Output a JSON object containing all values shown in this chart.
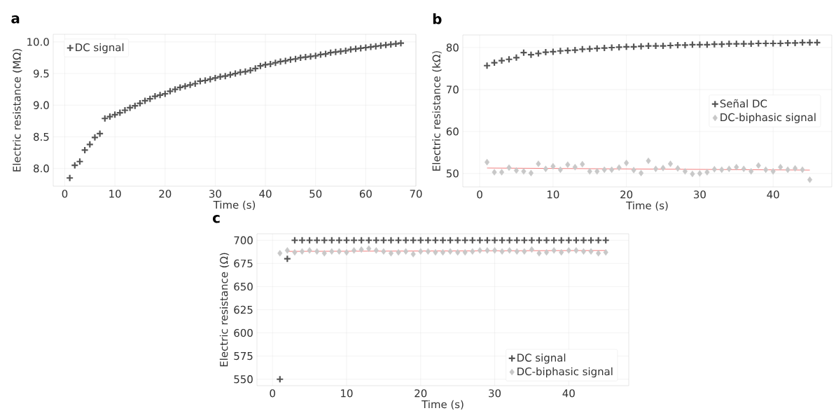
{
  "chart_data": [
    {
      "type": "scatter",
      "title": "a",
      "xlabel": "Time (s)",
      "ylabel": "Electric resistance (MΩ)",
      "xlim": [
        -2.3,
        70
      ],
      "ylim": [
        7.72,
        10.12
      ],
      "xticks": [
        0,
        10,
        20,
        30,
        40,
        50,
        60,
        70
      ],
      "yticks": [
        {
          "value": 8,
          "label": "8.0"
        },
        {
          "value": 8.5,
          "label": "8.5"
        },
        {
          "value": 9,
          "label": "9.0"
        },
        {
          "value": 9.5,
          "label": "9.5"
        },
        {
          "value": 10,
          "label": "10.0"
        }
      ],
      "grid": true,
      "legend": "top left",
      "series": [
        {
          "name": "DC signal",
          "color": "#555555",
          "marker": "cross",
          "x": [
            1,
            2,
            3,
            4,
            5,
            6,
            7,
            8,
            9,
            10,
            11,
            12,
            13,
            14,
            15,
            16,
            17,
            18,
            19,
            20,
            21,
            22,
            23,
            24,
            25,
            26,
            27,
            28,
            29,
            30,
            31,
            32,
            33,
            34,
            35,
            36,
            37,
            38,
            39,
            40,
            41,
            42,
            43,
            44,
            45,
            46,
            47,
            48,
            49,
            50,
            51,
            52,
            53,
            54,
            55,
            56,
            57,
            58,
            59,
            60,
            61,
            62,
            63,
            64,
            65,
            66,
            67
          ],
          "values": [
            7.85,
            8.05,
            8.11,
            8.29,
            8.38,
            8.49,
            8.55,
            8.79,
            8.82,
            8.85,
            8.88,
            8.92,
            8.96,
            8.99,
            9.03,
            9.07,
            9.1,
            9.14,
            9.16,
            9.18,
            9.22,
            9.25,
            9.28,
            9.3,
            9.32,
            9.34,
            9.38,
            9.39,
            9.41,
            9.43,
            9.45,
            9.46,
            9.48,
            9.5,
            9.52,
            9.53,
            9.55,
            9.58,
            9.62,
            9.64,
            9.65,
            9.67,
            9.69,
            9.7,
            9.72,
            9.73,
            9.75,
            9.76,
            9.77,
            9.78,
            9.8,
            9.81,
            9.83,
            9.84,
            9.85,
            9.86,
            9.88,
            9.89,
            9.9,
            9.91,
            9.92,
            9.93,
            9.94,
            9.95,
            9.96,
            9.97,
            9.98
          ]
        }
      ]
    },
    {
      "type": "scatter",
      "title": "b",
      "xlabel": "Time (s)",
      "ylabel": "Electric resistance (kΩ)",
      "xlim": [
        -2.3,
        48
      ],
      "ylim": [
        46.8,
        83
      ],
      "xticks": [
        0,
        10,
        20,
        30,
        40
      ],
      "yticks": [
        50,
        60,
        70,
        80
      ],
      "grid": true,
      "legend": "right",
      "series": [
        {
          "name": "Señal DC",
          "color": "#555555",
          "marker": "cross",
          "x": [
            1,
            2,
            3,
            4,
            5,
            6,
            7,
            8,
            9,
            10,
            11,
            12,
            13,
            14,
            15,
            16,
            17,
            18,
            19,
            20,
            21,
            22,
            23,
            24,
            25,
            26,
            27,
            28,
            29,
            30,
            31,
            32,
            33,
            34,
            35,
            36,
            37,
            38,
            39,
            40,
            41,
            42,
            43,
            44,
            45,
            46
          ],
          "values": [
            75.7,
            76.4,
            76.9,
            77.2,
            77.6,
            78.8,
            78.3,
            78.6,
            78.9,
            79.0,
            79.2,
            79.3,
            79.4,
            79.6,
            79.7,
            79.8,
            79.9,
            80.0,
            80.1,
            80.2,
            80.2,
            80.3,
            80.4,
            80.4,
            80.4,
            80.5,
            80.6,
            80.6,
            80.7,
            80.7,
            80.7,
            80.8,
            80.8,
            80.9,
            80.9,
            80.9,
            80.9,
            81.0,
            81.0,
            81.0,
            81.0,
            81.1,
            81.1,
            81.2,
            81.2,
            81.2
          ]
        },
        {
          "name": "DC-biphasic signal",
          "color": "#c8c8c8",
          "marker": "diamond",
          "x": [
            1,
            2,
            3,
            4,
            5,
            6,
            7,
            8,
            9,
            10,
            11,
            12,
            13,
            14,
            15,
            16,
            17,
            18,
            19,
            20,
            21,
            22,
            23,
            24,
            25,
            26,
            27,
            28,
            29,
            30,
            31,
            32,
            33,
            34,
            35,
            36,
            37,
            38,
            39,
            40,
            41,
            42,
            43,
            44,
            45
          ],
          "values": [
            52.7,
            50.3,
            50.3,
            51.4,
            50.7,
            50.5,
            50.1,
            52.3,
            51.1,
            51.7,
            50.9,
            52.1,
            51.5,
            52.2,
            50.5,
            50.5,
            50.9,
            50.9,
            51.4,
            52.5,
            50.8,
            50.1,
            53.0,
            51.1,
            51.3,
            52.3,
            51.2,
            50.5,
            49.9,
            50.0,
            50.3,
            51.0,
            50.9,
            51.1,
            51.5,
            51.1,
            50.5,
            51.9,
            50.9,
            50.5,
            51.5,
            50.9,
            51.2,
            50.9,
            48.5
          ]
        },
        {
          "type": "line",
          "color": "#f08080",
          "marker": "none",
          "x": [
            1,
            45
          ],
          "values": [
            51.3,
            50.8
          ]
        }
      ]
    },
    {
      "type": "scatter",
      "title": "c",
      "xlabel": "Time (s)",
      "ylabel": "Electric resistance (Ω)",
      "xlim": [
        -2.1,
        48.1
      ],
      "ylim": [
        543,
        707
      ],
      "xticks": [
        0,
        10,
        20,
        30,
        40
      ],
      "yticks": [
        550,
        575,
        600,
        625,
        650,
        675,
        700
      ],
      "grid": true,
      "legend": "bottom right",
      "series": [
        {
          "name": "DC signal",
          "color": "#555555",
          "marker": "cross",
          "x": [
            1,
            2,
            3,
            4,
            5,
            6,
            7,
            8,
            9,
            10,
            11,
            12,
            13,
            14,
            15,
            16,
            17,
            18,
            19,
            20,
            21,
            22,
            23,
            24,
            25,
            26,
            27,
            28,
            29,
            30,
            31,
            32,
            33,
            34,
            35,
            36,
            37,
            38,
            39,
            40,
            41,
            42,
            43,
            44,
            45
          ],
          "values": [
            550,
            680,
            700,
            700,
            700,
            700,
            700,
            700,
            700,
            700,
            700,
            700,
            700,
            700,
            700,
            700,
            700,
            700,
            700,
            700,
            700,
            700,
            700,
            700,
            700,
            700,
            700,
            700,
            700,
            700,
            700,
            700,
            700,
            700,
            700,
            700,
            700,
            700,
            700,
            700,
            700,
            700,
            700,
            700,
            700
          ]
        },
        {
          "name": "DC-biphasic signal",
          "color": "#c8c8c8",
          "marker": "diamond",
          "x": [
            1,
            2,
            3,
            4,
            5,
            6,
            7,
            8,
            9,
            10,
            11,
            12,
            13,
            14,
            15,
            16,
            17,
            18,
            19,
            20,
            21,
            22,
            23,
            24,
            25,
            26,
            27,
            28,
            29,
            30,
            31,
            32,
            33,
            34,
            35,
            36,
            37,
            38,
            39,
            40,
            41,
            42,
            43,
            44,
            45
          ],
          "values": [
            686,
            689,
            687,
            688,
            689,
            688,
            686,
            688,
            688,
            687,
            689,
            690,
            691,
            689,
            688,
            686,
            687,
            688,
            685,
            688,
            688,
            687,
            687,
            688,
            687,
            687,
            688,
            689,
            689,
            689,
            688,
            689,
            688,
            688,
            690,
            686,
            687,
            689,
            687,
            689,
            689,
            688,
            688,
            686,
            687
          ]
        },
        {
          "type": "line",
          "color": "#f08080",
          "marker": "none",
          "x": [
            2,
            45
          ],
          "values": [
            688,
            689
          ]
        }
      ]
    }
  ]
}
